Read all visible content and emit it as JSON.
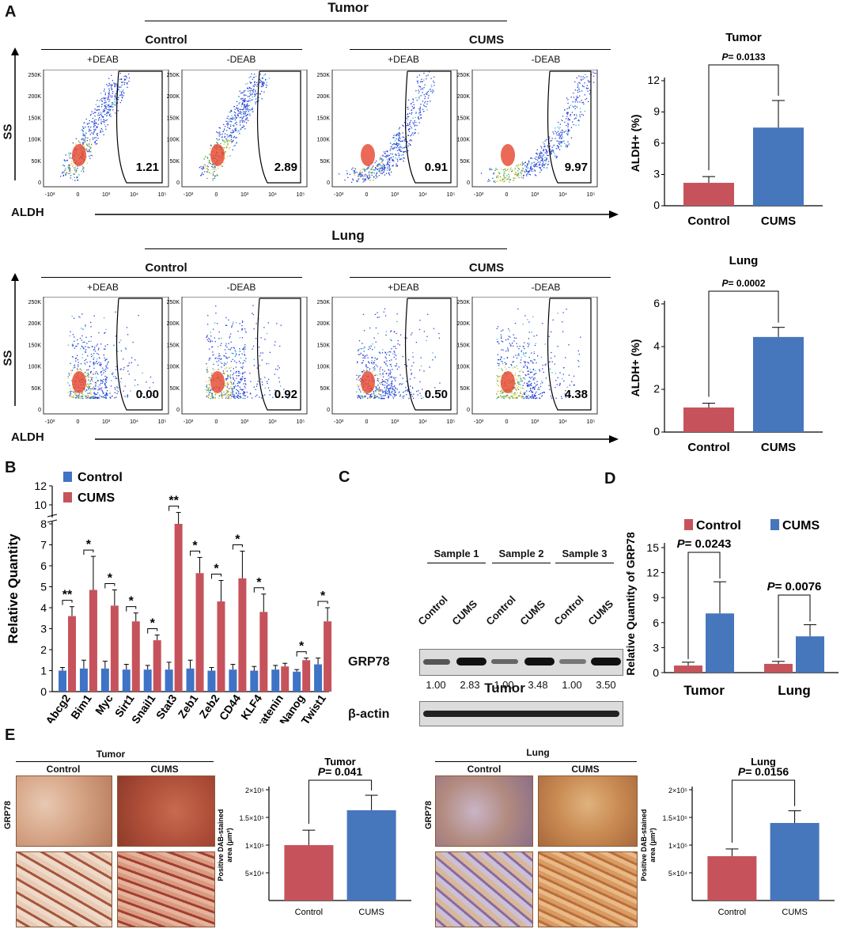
{
  "panels": {
    "A": "A",
    "B": "B",
    "C": "C",
    "D": "D",
    "E": "E"
  },
  "colors": {
    "control": "#c6535b",
    "cums": "#4676bc",
    "qpcr_control": "#3f73c6",
    "qpcr_cums": "#c6535b"
  },
  "flow_common": {
    "deab_plus": "+DEAB",
    "deab_minus": "-DEAB",
    "control": "Control",
    "cums": "CUMS",
    "y_axis": "SS",
    "x_axis": "ALDH",
    "y_ticks": [
      "250K",
      "200K",
      "150K",
      "100K",
      "50K",
      "0"
    ],
    "x_ticks": [
      "-10³",
      "0",
      "10³",
      "10⁴",
      "10⁵"
    ]
  },
  "flow_tumor": {
    "title": "Tumor",
    "gates": [
      "1.21",
      "2.89",
      "0.91",
      "9.97"
    ]
  },
  "flow_lung": {
    "title": "Lung",
    "gates": [
      "0.00",
      "0.92",
      "0.50",
      "4.38"
    ]
  },
  "chart_data": [
    {
      "id": "A_tumor",
      "type": "bar",
      "title": "Tumor",
      "categories": [
        "Control",
        "CUMS"
      ],
      "values": [
        2.2,
        7.5
      ],
      "errors": [
        0.6,
        2.6
      ],
      "ylabel": "ALDH+ (%)",
      "ylim": [
        0,
        12
      ],
      "yticks": [
        "0",
        "3",
        "6",
        "9",
        "12"
      ],
      "annotation": "P= 0.0133",
      "p_label": "P",
      "p_value": "= 0.0133"
    },
    {
      "id": "A_lung",
      "type": "bar",
      "title": "Lung",
      "categories": [
        "Control",
        "CUMS"
      ],
      "values": [
        1.15,
        4.45
      ],
      "errors": [
        0.2,
        0.45
      ],
      "ylabel": "ALDH+ (%)",
      "ylim": [
        0,
        6
      ],
      "yticks": [
        "0",
        "2",
        "4",
        "6"
      ],
      "annotation": "P= 0.0002",
      "p_label": "P",
      "p_value": "= 0.0002"
    },
    {
      "id": "B",
      "type": "bar",
      "categories": [
        "Abcg2",
        "Bim1",
        "Myc",
        "Sirt1",
        "Snail1",
        "Stat3",
        "Zeb1",
        "Zeb2",
        "CD44",
        "KLF4",
        "β-catenin",
        "Nanog",
        "Twist1"
      ],
      "series": [
        {
          "name": "Control",
          "values": [
            1.0,
            1.1,
            1.1,
            1.05,
            1.05,
            1.05,
            1.1,
            1.0,
            1.05,
            1.0,
            1.05,
            0.95,
            1.3
          ],
          "errors": [
            0.15,
            0.4,
            0.35,
            0.25,
            0.2,
            0.35,
            0.4,
            0.15,
            0.25,
            0.2,
            0.2,
            0.1,
            0.3
          ]
        },
        {
          "name": "CUMS",
          "values": [
            3.6,
            4.85,
            4.1,
            3.35,
            2.45,
            8.0,
            5.65,
            4.3,
            5.4,
            3.8,
            1.2,
            1.5,
            3.35
          ],
          "errors": [
            0.45,
            1.6,
            0.75,
            0.4,
            0.25,
            1.2,
            0.75,
            1.0,
            1.3,
            0.85,
            0.15,
            0.1,
            0.65
          ]
        }
      ],
      "ylabel": "Relative Quantity",
      "yticks": [
        "0",
        "1",
        "2",
        "3",
        "4",
        "5",
        "6",
        "7",
        "8",
        "10",
        "12"
      ],
      "significance": [
        "**",
        "*",
        "*",
        "*",
        "*",
        "**",
        "*",
        "*",
        "*",
        "*",
        "",
        "*",
        "*"
      ]
    },
    {
      "id": "D",
      "type": "bar",
      "categories": [
        "Tumor",
        "Lung"
      ],
      "series": [
        {
          "name": "Control",
          "values": [
            0.85,
            1.05
          ],
          "errors": [
            0.4,
            0.3
          ]
        },
        {
          "name": "CUMS",
          "values": [
            7.1,
            4.35
          ],
          "errors": [
            3.8,
            1.4
          ]
        }
      ],
      "ylabel": "Relative Quantity of GRP78",
      "ylim": [
        0,
        15
      ],
      "yticks": [
        "0",
        "3",
        "6",
        "9",
        "12",
        "15"
      ],
      "annotations": [
        "P= 0.0243",
        "P= 0.0076"
      ],
      "p_label": "P",
      "p_values": [
        "= 0.0243",
        "= 0.0076"
      ]
    },
    {
      "id": "E_tumor",
      "type": "bar",
      "title": "Tumor",
      "categories": [
        "Control",
        "CUMS"
      ],
      "values": [
        100000,
        163000
      ],
      "errors": [
        27000,
        27000
      ],
      "ylabel": "Positive DAB-stained area (μm²)",
      "ylim": [
        0,
        200000
      ],
      "yticks": [
        "5×10⁴",
        "1×10⁵",
        "1.5×10⁵",
        "2×10⁵"
      ],
      "annotation": "P= 0.041",
      "p_label": "P",
      "p_value": "= 0.041"
    },
    {
      "id": "E_lung",
      "type": "bar",
      "title": "Lung",
      "categories": [
        "Control",
        "CUMS"
      ],
      "values": [
        80000,
        140000
      ],
      "errors": [
        13000,
        22000
      ],
      "ylabel": "Positive DAB-stained area (μm²)",
      "ylim": [
        0,
        200000
      ],
      "yticks": [
        "5×10⁴",
        "1×10⁵",
        "1.5×10⁵",
        "2×10⁵"
      ],
      "annotation": "P= 0.0156",
      "p_label": "P",
      "p_value": "= 0.0156"
    }
  ],
  "western": {
    "samples": [
      "Sample 1",
      "Sample 2",
      "Sample 3"
    ],
    "lanes": [
      "Control",
      "CUMS",
      "Control",
      "CUMS",
      "Control",
      "CUMS"
    ],
    "protein": "GRP78",
    "loading": "β-actin",
    "quant": [
      "1.00",
      "2.83",
      "1.00",
      "3.48",
      "1.00",
      "3.50"
    ],
    "footer": "Tumor"
  },
  "ihc": {
    "tumor_title": "Tumor",
    "lung_title": "Lung",
    "control": "Control",
    "cums": "CUMS",
    "side_label": "GRP78"
  }
}
